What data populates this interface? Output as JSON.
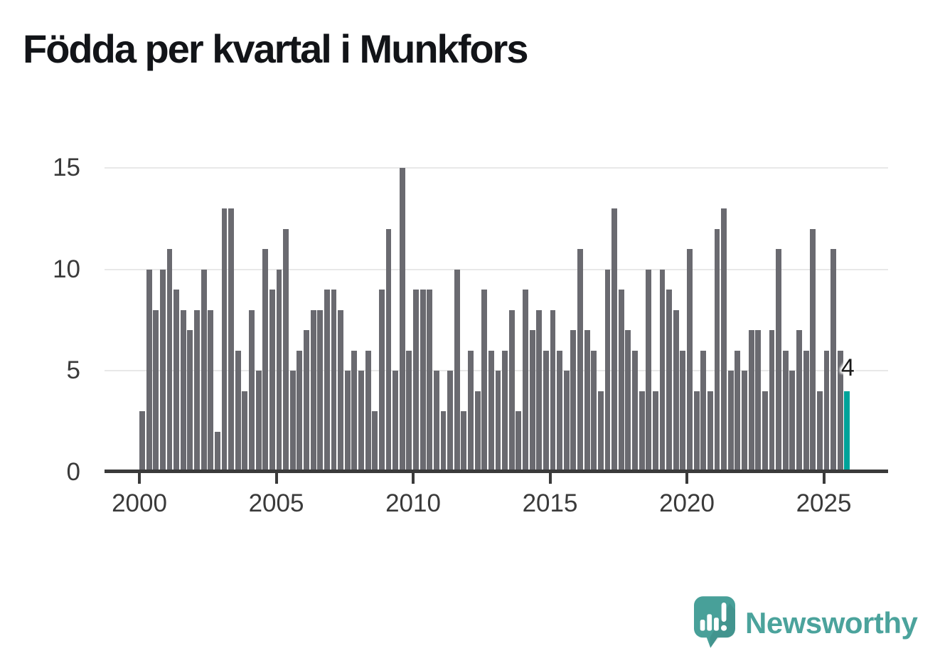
{
  "title": "Födda per kvartal i Munkfors",
  "chart_data": {
    "type": "bar",
    "title": "Födda per kvartal i Munkfors",
    "xlabel": "",
    "ylabel": "",
    "ylim": [
      0,
      15
    ],
    "grid": "horizontal-gridlines",
    "legend": "none",
    "bar_color": "#6a6a70",
    "grid_color": "#e8e8e8",
    "axis_color": "#3a3a3a",
    "categories": [
      "2000Q1",
      "2000Q2",
      "2000Q3",
      "2000Q4",
      "2001Q1",
      "2001Q2",
      "2001Q3",
      "2001Q4",
      "2002Q1",
      "2002Q2",
      "2002Q3",
      "2002Q4",
      "2003Q1",
      "2003Q2",
      "2003Q3",
      "2003Q4",
      "2004Q1",
      "2004Q2",
      "2004Q3",
      "2004Q4",
      "2005Q1",
      "2005Q2",
      "2005Q3",
      "2005Q4",
      "2006Q1",
      "2006Q2",
      "2006Q3",
      "2006Q4",
      "2007Q1",
      "2007Q2",
      "2007Q3",
      "2007Q4",
      "2008Q1",
      "2008Q2",
      "2008Q3",
      "2008Q4",
      "2009Q1",
      "2009Q2",
      "2009Q3",
      "2009Q4",
      "2010Q1",
      "2010Q2",
      "2010Q3",
      "2010Q4",
      "2011Q1",
      "2011Q2",
      "2011Q3",
      "2011Q4",
      "2012Q1",
      "2012Q2",
      "2012Q3",
      "2012Q4",
      "2013Q1",
      "2013Q2",
      "2013Q3",
      "2013Q4",
      "2014Q1",
      "2014Q2",
      "2014Q3",
      "2014Q4",
      "2015Q1",
      "2015Q2",
      "2015Q3",
      "2015Q4",
      "2016Q1",
      "2016Q2",
      "2016Q3",
      "2016Q4",
      "2017Q1",
      "2017Q2",
      "2017Q3",
      "2017Q4",
      "2018Q1",
      "2018Q2",
      "2018Q3",
      "2018Q4",
      "2019Q1",
      "2019Q2",
      "2019Q3",
      "2019Q4",
      "2020Q1",
      "2020Q2",
      "2020Q3",
      "2020Q4",
      "2021Q1",
      "2021Q2",
      "2021Q3",
      "2021Q4",
      "2022Q1",
      "2022Q2",
      "2022Q3",
      "2022Q4",
      "2023Q1",
      "2023Q2",
      "2023Q3",
      "2023Q4",
      "2024Q1",
      "2024Q2",
      "2024Q3",
      "2024Q4",
      "2025Q1",
      "2025Q2",
      "2025Q3",
      "2025Q4"
    ],
    "values": [
      3,
      10,
      8,
      10,
      11,
      9,
      8,
      7,
      8,
      10,
      8,
      2,
      13,
      13,
      6,
      4,
      8,
      5,
      11,
      9,
      10,
      12,
      5,
      6,
      7,
      8,
      8,
      9,
      9,
      8,
      5,
      6,
      5,
      6,
      3,
      9,
      12,
      5,
      15,
      6,
      9,
      9,
      9,
      5,
      3,
      5,
      10,
      3,
      6,
      4,
      9,
      6,
      5,
      6,
      8,
      3,
      9,
      7,
      8,
      6,
      8,
      6,
      5,
      7,
      11,
      7,
      6,
      4,
      10,
      13,
      9,
      7,
      6,
      4,
      10,
      4,
      10,
      9,
      8,
      6,
      11,
      4,
      6,
      4,
      12,
      13,
      5,
      6,
      5,
      7,
      7,
      4,
      7,
      11,
      6,
      5,
      7,
      6,
      12,
      4,
      6,
      11,
      6,
      4
    ],
    "highlight": {
      "index": 103,
      "category": "2025Q4",
      "value": 4,
      "label": "4",
      "color": "#00a39a"
    },
    "xticks": [
      "2000",
      "2005",
      "2010",
      "2015",
      "2020",
      "2025"
    ],
    "xtick_quarter_indices": [
      0,
      20,
      40,
      60,
      80,
      100
    ],
    "yticks": [
      0,
      5,
      10,
      15
    ]
  },
  "annotation": {
    "last_value_label": "4"
  },
  "branding": {
    "name": "Newsworthy",
    "icon": "speech-bubble-bar-chart-icon",
    "bubble_color": "#48a099",
    "text_color": "#4ba39c"
  }
}
